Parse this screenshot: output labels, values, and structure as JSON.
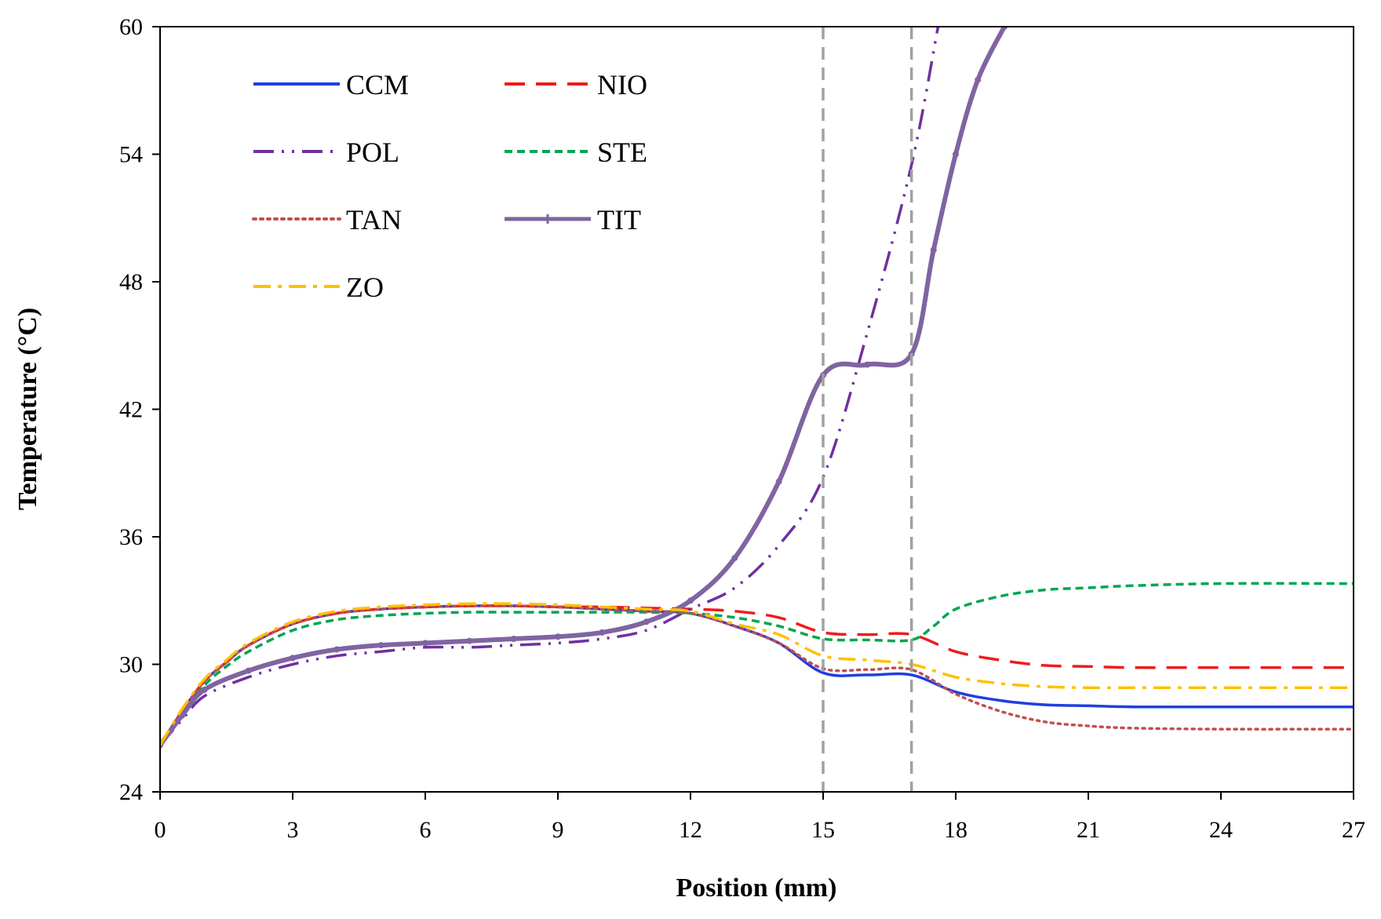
{
  "chart_data": {
    "type": "line",
    "title": "",
    "xlabel": "Position (mm)",
    "ylabel": "Temperature (°C)",
    "xlim": [
      0,
      27
    ],
    "ylim": [
      24,
      60
    ],
    "xticks": [
      0,
      3,
      6,
      9,
      12,
      15,
      18,
      21,
      24,
      27
    ],
    "yticks": [
      24,
      30,
      36,
      42,
      48,
      54,
      60
    ],
    "grid": false,
    "legend_position": "top-left",
    "vlines": [
      15,
      17
    ],
    "vline_color": "#a0a0a0",
    "series": [
      {
        "name": "CCM",
        "color": "#1f3fe0",
        "dash": "solid",
        "x": [
          0,
          0.5,
          1,
          1.5,
          2,
          3,
          4,
          5,
          6,
          7,
          8,
          9,
          10,
          11,
          12,
          13,
          14,
          15,
          16,
          17,
          18,
          19,
          20,
          21,
          22,
          24,
          27
        ],
        "y": [
          26.2,
          27.8,
          29.2,
          30.1,
          30.9,
          31.9,
          32.4,
          32.6,
          32.7,
          32.75,
          32.75,
          32.7,
          32.6,
          32.5,
          32.4,
          31.8,
          31.0,
          29.6,
          29.5,
          29.5,
          28.7,
          28.3,
          28.1,
          28.05,
          28.0,
          28.0,
          28.0
        ]
      },
      {
        "name": "NIO",
        "color": "#ee1c1c",
        "dash": "long-dash",
        "x": [
          0,
          0.5,
          1,
          1.5,
          2,
          3,
          4,
          5,
          6,
          7,
          8,
          9,
          10,
          11,
          12,
          13,
          14,
          15,
          16,
          17,
          18,
          19,
          20,
          21,
          22,
          24,
          27
        ],
        "y": [
          26.2,
          27.8,
          29.2,
          30.1,
          30.9,
          31.9,
          32.4,
          32.6,
          32.7,
          32.75,
          32.75,
          32.7,
          32.7,
          32.65,
          32.6,
          32.5,
          32.2,
          31.5,
          31.4,
          31.4,
          30.6,
          30.2,
          29.95,
          29.9,
          29.85,
          29.85,
          29.85
        ]
      },
      {
        "name": "POL",
        "color": "#7030a0",
        "dash": "dash-dot-dot",
        "x": [
          0,
          0.5,
          1,
          2,
          3,
          4,
          5,
          6,
          7,
          8,
          9,
          10,
          11,
          12,
          13,
          14,
          15,
          16,
          17,
          17.6
        ],
        "y": [
          26.2,
          27.4,
          28.5,
          29.4,
          30.0,
          30.4,
          30.6,
          30.8,
          30.8,
          30.9,
          31.0,
          31.2,
          31.6,
          32.6,
          33.6,
          35.6,
          38.8,
          45.6,
          53.5,
          60.0
        ]
      },
      {
        "name": "STE",
        "color": "#00a650",
        "dash": "short-dash",
        "x": [
          0,
          0.5,
          1,
          1.5,
          2,
          3,
          4,
          5,
          6,
          7,
          8,
          9,
          10,
          11,
          12,
          13,
          14,
          15,
          16,
          17,
          17.5,
          18,
          19,
          20,
          21,
          22,
          24,
          27
        ],
        "y": [
          26.2,
          27.6,
          29.0,
          29.9,
          30.6,
          31.6,
          32.1,
          32.3,
          32.4,
          32.45,
          32.45,
          32.45,
          32.45,
          32.45,
          32.4,
          32.2,
          31.8,
          31.2,
          31.15,
          31.15,
          31.8,
          32.6,
          33.2,
          33.5,
          33.6,
          33.7,
          33.8,
          33.8
        ]
      },
      {
        "name": "TAN",
        "color": "#c0504d",
        "dash": "dotted",
        "x": [
          0,
          0.5,
          1,
          1.5,
          2,
          3,
          4,
          5,
          6,
          7,
          8,
          9,
          10,
          11,
          12,
          13,
          14,
          15,
          16,
          17,
          18,
          19,
          20,
          21,
          22,
          24,
          27
        ],
        "y": [
          26.2,
          27.8,
          29.2,
          30.1,
          30.9,
          31.9,
          32.4,
          32.6,
          32.7,
          32.75,
          32.75,
          32.7,
          32.6,
          32.5,
          32.4,
          31.8,
          31.0,
          29.8,
          29.75,
          29.75,
          28.6,
          27.8,
          27.3,
          27.1,
          27.0,
          26.95,
          26.95
        ]
      },
      {
        "name": "TIT",
        "color": "#8064a2",
        "dash": "solid-markers",
        "x": [
          0,
          0.5,
          1,
          2,
          3,
          4,
          5,
          6,
          7,
          8,
          9,
          10,
          11,
          12,
          13,
          14,
          15,
          16,
          17,
          17.5,
          18,
          18.5,
          19.1
        ],
        "y": [
          26.2,
          27.6,
          28.8,
          29.7,
          30.3,
          30.7,
          30.9,
          31.0,
          31.1,
          31.2,
          31.3,
          31.5,
          32.0,
          33.0,
          35.0,
          38.6,
          43.6,
          44.1,
          44.6,
          49.5,
          54.0,
          57.5,
          60.0
        ]
      },
      {
        "name": "ZO",
        "color": "#ffc000",
        "dash": "dash-dot",
        "x": [
          0,
          0.5,
          1,
          1.5,
          2,
          3,
          4,
          5,
          6,
          7,
          8,
          9,
          10,
          11,
          12,
          13,
          14,
          15,
          16,
          17,
          18,
          19,
          20,
          21,
          22,
          24,
          27
        ],
        "y": [
          26.2,
          27.9,
          29.3,
          30.2,
          31.0,
          32.0,
          32.5,
          32.7,
          32.8,
          32.85,
          32.85,
          32.8,
          32.7,
          32.6,
          32.5,
          31.9,
          31.4,
          30.4,
          30.2,
          30.0,
          29.4,
          29.1,
          28.95,
          28.9,
          28.9,
          28.9,
          28.9
        ]
      }
    ]
  }
}
